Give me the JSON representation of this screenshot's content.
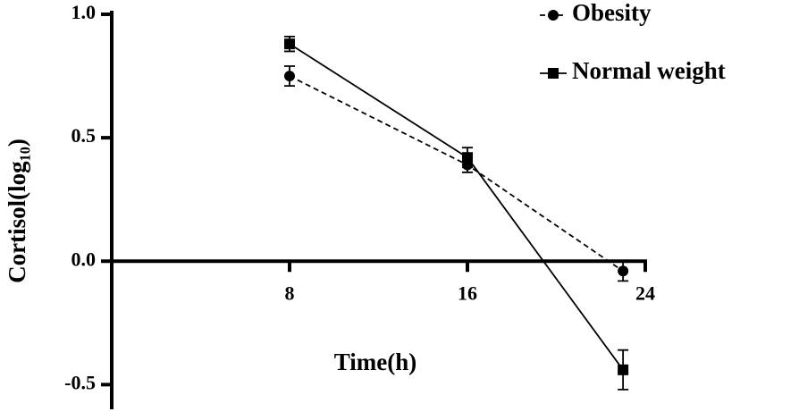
{
  "chart_data": {
    "type": "line",
    "x_label": "Time(h)",
    "y_label": "Cortisol(log₁₀)",
    "x": [
      8,
      16,
      23
    ],
    "series": [
      {
        "name": "Obesity",
        "color": "#000000",
        "line_style": "dashed",
        "marker": "circle",
        "values": [
          0.75,
          0.39,
          -0.04
        ],
        "errors": [
          0.04,
          0.03,
          0.04
        ]
      },
      {
        "name": "Normal weight",
        "color": "#000000",
        "line_style": "solid",
        "marker": "square",
        "values": [
          0.88,
          0.42,
          -0.44
        ],
        "errors": [
          0.03,
          0.04,
          0.08
        ]
      }
    ],
    "xlim": [
      0,
      24
    ],
    "xticks": [
      8,
      16,
      24
    ],
    "ylim": [
      -0.6,
      1.0
    ],
    "yticks": [
      {
        "value": -0.5,
        "label": "-0.5"
      },
      {
        "value": 0,
        "label": "0.0"
      },
      {
        "value": 0.5,
        "label": "0.5"
      },
      {
        "value": 1.0,
        "label": "1.0"
      }
    ],
    "legend": "top-right"
  }
}
